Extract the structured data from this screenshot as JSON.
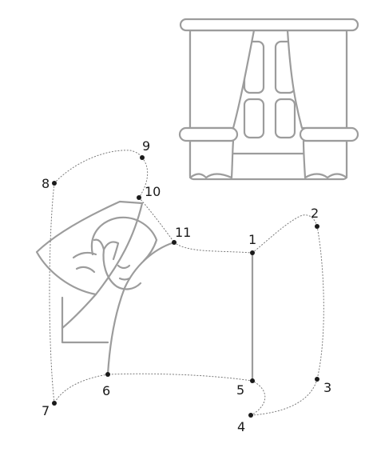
{
  "puzzle": {
    "points": [
      {
        "label": "1"
      },
      {
        "label": "2"
      },
      {
        "label": "3"
      },
      {
        "label": "4"
      },
      {
        "label": "5"
      },
      {
        "label": "6"
      },
      {
        "label": "7"
      },
      {
        "label": "8"
      },
      {
        "label": "9"
      },
      {
        "label": "10"
      },
      {
        "label": "11"
      }
    ]
  }
}
